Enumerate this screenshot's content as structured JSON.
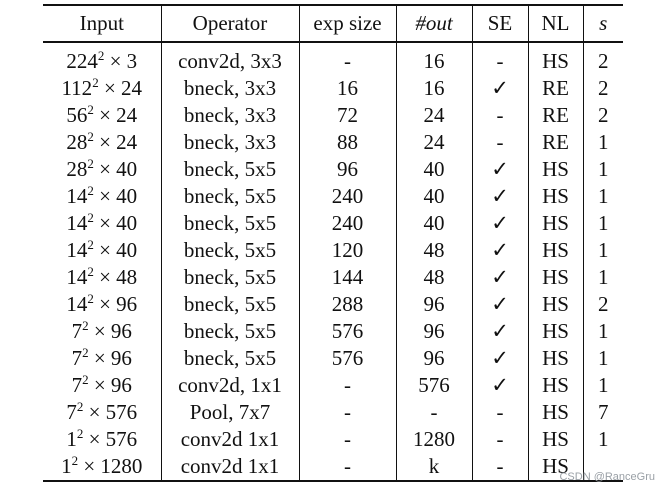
{
  "table": {
    "headers": [
      "Input",
      "Operator",
      "exp size",
      "#out",
      "SE",
      "NL",
      "s"
    ],
    "rows": [
      {
        "input_base": "224",
        "input_exp": "2",
        "input_rest": "× 3",
        "operator": "conv2d, 3x3",
        "exp": "-",
        "out": "16",
        "se": "-",
        "nl": "HS",
        "s": "2"
      },
      {
        "input_base": "112",
        "input_exp": "2",
        "input_rest": "× 24",
        "operator": "bneck, 3x3",
        "exp": "16",
        "out": "16",
        "se": "✓",
        "nl": "RE",
        "s": "2"
      },
      {
        "input_base": "56",
        "input_exp": "2",
        "input_rest": "× 24",
        "operator": "bneck, 3x3",
        "exp": "72",
        "out": "24",
        "se": "-",
        "nl": "RE",
        "s": "2"
      },
      {
        "input_base": "28",
        "input_exp": "2",
        "input_rest": "× 24",
        "operator": "bneck, 3x3",
        "exp": "88",
        "out": "24",
        "se": "-",
        "nl": "RE",
        "s": "1"
      },
      {
        "input_base": "28",
        "input_exp": "2",
        "input_rest": "× 40",
        "operator": "bneck, 5x5",
        "exp": "96",
        "out": "40",
        "se": "✓",
        "nl": "HS",
        "s": "1"
      },
      {
        "input_base": "14",
        "input_exp": "2",
        "input_rest": "× 40",
        "operator": "bneck, 5x5",
        "exp": "240",
        "out": "40",
        "se": "✓",
        "nl": "HS",
        "s": "1"
      },
      {
        "input_base": "14",
        "input_exp": "2",
        "input_rest": "× 40",
        "operator": "bneck, 5x5",
        "exp": "240",
        "out": "40",
        "se": "✓",
        "nl": "HS",
        "s": "1"
      },
      {
        "input_base": "14",
        "input_exp": "2",
        "input_rest": "× 40",
        "operator": "bneck, 5x5",
        "exp": "120",
        "out": "48",
        "se": "✓",
        "nl": "HS",
        "s": "1"
      },
      {
        "input_base": "14",
        "input_exp": "2",
        "input_rest": "× 48",
        "operator": "bneck, 5x5",
        "exp": "144",
        "out": "48",
        "se": "✓",
        "nl": "HS",
        "s": "1"
      },
      {
        "input_base": "14",
        "input_exp": "2",
        "input_rest": "× 96",
        "operator": "bneck, 5x5",
        "exp": "288",
        "out": "96",
        "se": "✓",
        "nl": "HS",
        "s": "2"
      },
      {
        "input_base": "7",
        "input_exp": "2",
        "input_rest": "× 96",
        "operator": "bneck, 5x5",
        "exp": "576",
        "out": "96",
        "se": "✓",
        "nl": "HS",
        "s": "1"
      },
      {
        "input_base": "7",
        "input_exp": "2",
        "input_rest": "× 96",
        "operator": "bneck, 5x5",
        "exp": "576",
        "out": "96",
        "se": "✓",
        "nl": "HS",
        "s": "1"
      },
      {
        "input_base": "7",
        "input_exp": "2",
        "input_rest": "× 96",
        "operator": "conv2d, 1x1",
        "exp": "-",
        "out": "576",
        "se": "✓",
        "nl": "HS",
        "s": "1"
      },
      {
        "input_base": "7",
        "input_exp": "2",
        "input_rest": "× 576",
        "operator": "Pool, 7x7",
        "exp": "-",
        "out": "-",
        "se": "-",
        "nl": "HS",
        "s": "7"
      },
      {
        "input_base": "1",
        "input_exp": "2",
        "input_rest": "× 576",
        "operator": "conv2d 1x1",
        "exp": "-",
        "out": "1280",
        "se": "-",
        "nl": "HS",
        "s": "1"
      },
      {
        "input_base": "1",
        "input_exp": "2",
        "input_rest": "× 1280",
        "operator": "conv2d 1x1",
        "exp": "-",
        "out": "k",
        "se": "-",
        "nl": "HS",
        "s": ""
      }
    ]
  },
  "watermark": "CSDN @RanceGru"
}
